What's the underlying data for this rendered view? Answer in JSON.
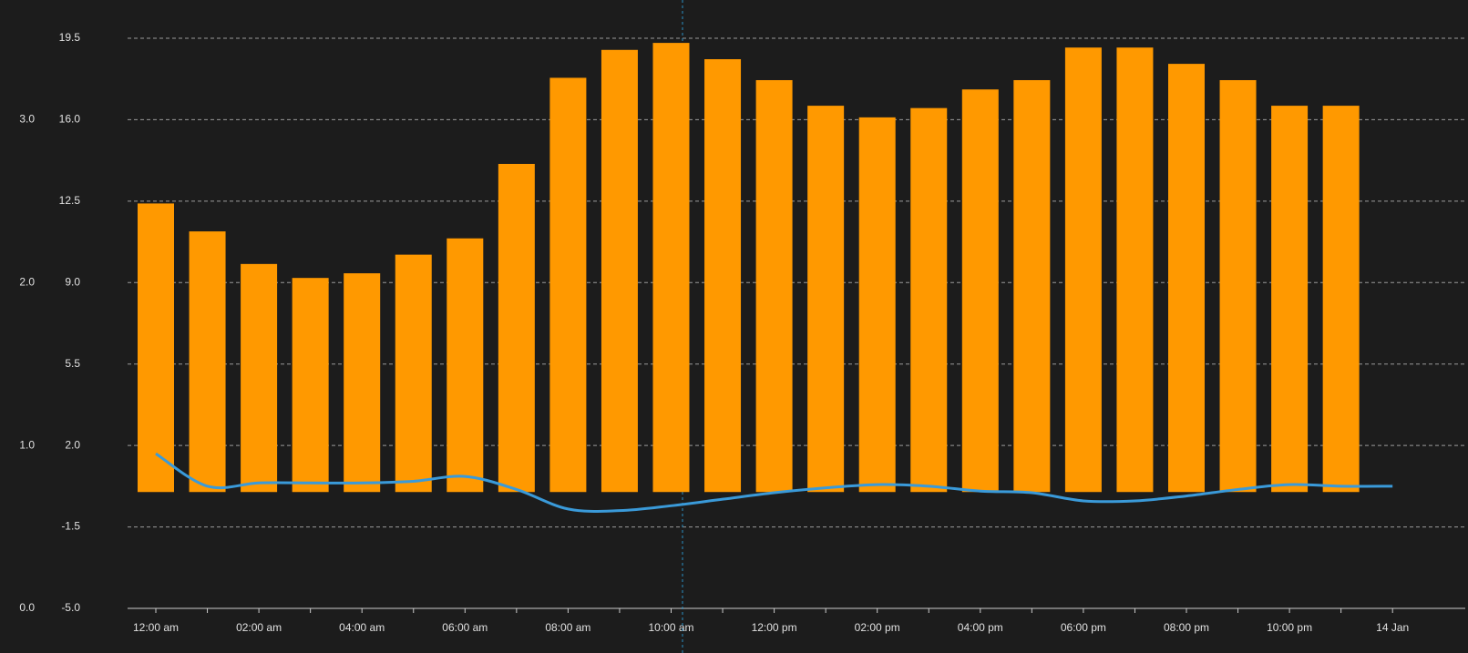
{
  "chart_data": {
    "type": "bar",
    "categories": [
      "12:00 am",
      null,
      "02:00 am",
      null,
      "04:00 am",
      null,
      "06:00 am",
      null,
      "08:00 am",
      null,
      "10:00 am",
      null,
      "12:00 pm",
      null,
      "02:00 pm",
      null,
      "04:00 pm",
      null,
      "06:00 pm",
      null,
      "08:00 pm",
      null,
      "10:00 pm",
      null,
      "14 Jan"
    ],
    "series": [
      {
        "type": "bar",
        "color": "#ff9900",
        "values": [
          12.4,
          11.2,
          9.8,
          9.2,
          9.4,
          10.2,
          10.9,
          14.1,
          17.8,
          19.0,
          19.3,
          18.6,
          17.7,
          16.6,
          16.1,
          16.5,
          17.3,
          17.7,
          19.1,
          19.1,
          18.4,
          17.7,
          16.6,
          16.6,
          null
        ]
      },
      {
        "type": "line",
        "axis": "y2",
        "color": "#3a9ad9",
        "values": [
          0.95,
          0.75,
          0.77,
          0.77,
          0.77,
          0.78,
          0.81,
          0.73,
          0.61,
          0.6,
          0.63,
          0.67,
          0.71,
          0.74,
          0.76,
          0.75,
          0.72,
          0.71,
          0.66,
          0.66,
          0.69,
          0.73,
          0.76,
          0.75,
          0.75
        ]
      }
    ],
    "ylim": [
      -5.0,
      19.5
    ],
    "yticks": [
      {
        "value": -5.0,
        "label": "-5.0"
      },
      -1.5,
      {
        "value": 2.0,
        "label": "2.0"
      },
      5.5,
      {
        "value": 9.0,
        "label": "9.0"
      },
      12.5,
      {
        "value": 16.0,
        "label": "16.0"
      },
      19.5
    ],
    "y2lim": [
      0,
      3.5
    ],
    "y2ticks": [
      {
        "value": 0,
        "label": "0.0"
      },
      {
        "value": 1,
        "label": "1.0"
      },
      {
        "value": 2,
        "label": "2.0"
      },
      {
        "value": 3,
        "label": "3.0"
      }
    ],
    "grid": true
  }
}
